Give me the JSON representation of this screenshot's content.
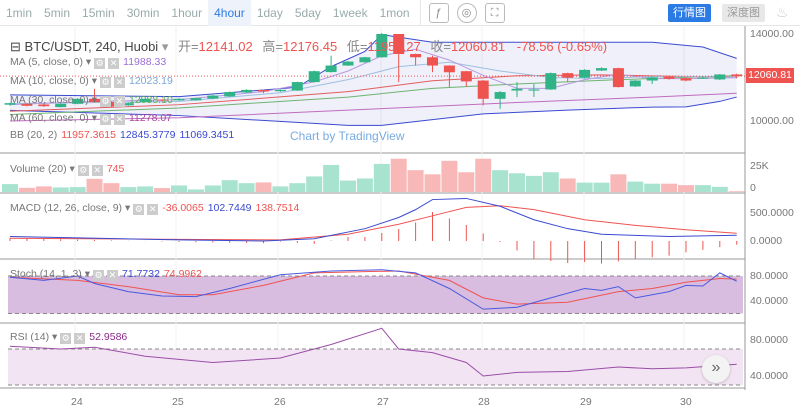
{
  "toolbar": {
    "timeframes": [
      "1min",
      "5min",
      "15min",
      "30min",
      "1hour",
      "4hour",
      "1day",
      "5day",
      "1week",
      "1mon"
    ],
    "active": "4hour",
    "icons": [
      "indicator-icon",
      "settings-icon",
      "fullscreen-icon"
    ],
    "view_buttons": [
      "行情图",
      "深度图"
    ],
    "active_view": "行情图",
    "accent": "#2c7be5"
  },
  "header": {
    "symbol": "BTC/USDT, 240, Huobi",
    "open_label": "开=",
    "open": "12141.02",
    "high_label": "高=",
    "high": "12176.45",
    "low_label": "低=",
    "low": "11958.27",
    "close_label": "收=",
    "close": "12060.81",
    "change": "-78.56 (-0.65%)"
  },
  "legends": {
    "ma5": {
      "label": "MA (5, close, 0)",
      "value": "11988.33",
      "color": "#9c6fd6"
    },
    "ma10": {
      "label": "MA (10, close, 0)",
      "value": "12023.19",
      "color": "#7ba7d8"
    },
    "ma30": {
      "label": "MA (30, close, 0)",
      "value": "12088.10",
      "color": "#5fae5f"
    },
    "ma60": {
      "label": "MA (60, close, 0)",
      "value": "11278.07",
      "color": "#a9459e"
    },
    "bb": {
      "label": "BB (20, 2)",
      "values": [
        "11957.3615",
        "12845.3779",
        "11069.3451"
      ]
    },
    "volume": {
      "label": "Volume (20)",
      "value": "745"
    },
    "macd": {
      "label": "MACD (12, 26, close, 9)",
      "values": [
        "-36.0065",
        "102.7449",
        "138.7514"
      ]
    },
    "stoch": {
      "label": "Stoch (14, 1, 3)",
      "values": [
        "71.7732",
        "74.9962"
      ]
    },
    "rsi": {
      "label": "RSI (14)",
      "value": "52.9586"
    }
  },
  "watermark": "Chart by TradingView",
  "price_axis": {
    "labels": [
      "14000.00",
      "10000.00"
    ],
    "current": "12060.81"
  },
  "volume_axis": [
    "25K",
    "0"
  ],
  "macd_axis": [
    "500.0000",
    "0.0000"
  ],
  "stoch_axis": [
    "80.0000",
    "40.0000"
  ],
  "rsi_axis": [
    "80.0000",
    "40.0000"
  ],
  "x_axis": [
    "24",
    "25",
    "26",
    "27",
    "28",
    "29",
    "30"
  ],
  "colors": {
    "up": "#2fb387",
    "down": "#ef5350",
    "vol_up": "#a8e3cf",
    "vol_down": "#f9b8b8"
  },
  "chart_data": {
    "type": "candlestick",
    "candles": [
      [
        10750,
        10850,
        10700,
        10820
      ],
      [
        10790,
        10830,
        10670,
        10700
      ],
      [
        10760,
        10800,
        10650,
        10680
      ],
      [
        10640,
        10820,
        10620,
        10790
      ],
      [
        10790,
        11050,
        10770,
        11020
      ],
      [
        11020,
        11480,
        10850,
        10870
      ],
      [
        10870,
        10900,
        10640,
        10670
      ],
      [
        10720,
        10850,
        10700,
        10820
      ],
      [
        10870,
        11050,
        10850,
        11020
      ],
      [
        10980,
        11000,
        10900,
        10940
      ],
      [
        10950,
        11050,
        10930,
        11020
      ],
      [
        10950,
        11070,
        10930,
        11050
      ],
      [
        11030,
        11200,
        11000,
        11170
      ],
      [
        11130,
        11360,
        11110,
        11330
      ],
      [
        11310,
        11460,
        11290,
        11430
      ],
      [
        11430,
        11450,
        11280,
        11360
      ],
      [
        11370,
        11450,
        11340,
        11430
      ],
      [
        11400,
        11810,
        11380,
        11790
      ],
      [
        11790,
        12320,
        11770,
        12290
      ],
      [
        12250,
        13000,
        12230,
        12550
      ],
      [
        12550,
        12760,
        12530,
        12730
      ],
      [
        12700,
        12950,
        12690,
        12930
      ],
      [
        12930,
        14050,
        12910,
        14000
      ],
      [
        14000,
        14000,
        11790,
        13080
      ],
      [
        13080,
        13100,
        12550,
        12930
      ],
      [
        12930,
        13000,
        12250,
        12550
      ],
      [
        12550,
        12560,
        11560,
        12240
      ],
      [
        12290,
        12300,
        11590,
        11820
      ],
      [
        11860,
        11880,
        10720,
        11020
      ],
      [
        11020,
        11380,
        10560,
        11330
      ],
      [
        11400,
        11790,
        11100,
        11480
      ],
      [
        11400,
        11700,
        11100,
        11450
      ],
      [
        11450,
        12230,
        11430,
        12200
      ],
      [
        12200,
        12220,
        11790,
        11990
      ],
      [
        11990,
        12380,
        11960,
        12350
      ],
      [
        12320,
        12470,
        12300,
        12430
      ],
      [
        12430,
        12450,
        11540,
        11560
      ],
      [
        11590,
        11880,
        11570,
        11860
      ],
      [
        11860,
        12030,
        11700,
        12010
      ],
      [
        12050,
        12080,
        11900,
        11940
      ],
      [
        11970,
        12000,
        11830,
        11860
      ],
      [
        11960,
        12060,
        11940,
        11990
      ],
      [
        11910,
        12160,
        11890,
        12140
      ],
      [
        12141.02,
        12176.45,
        11958.27,
        12060.81
      ]
    ],
    "volume_k": [
      7.6,
      4,
      5.4,
      4.4,
      4.7,
      12.7,
      8.5,
      4.7,
      5.4,
      3.8,
      6.3,
      2.5,
      6.3,
      11.4,
      8.5,
      9.2,
      5.4,
      8.5,
      15,
      26,
      11,
      13,
      27,
      32,
      21,
      17,
      30,
      19,
      32,
      21,
      18,
      15.5,
      19,
      13,
      9,
      9,
      17,
      10,
      8,
      8,
      6.6,
      6.6,
      5,
      0.745
    ],
    "bb_upper": [
      [
        0,
        11200
      ],
      [
        10,
        11120
      ],
      [
        17,
        11550
      ],
      [
        19,
        12500
      ],
      [
        21,
        13200
      ],
      [
        22,
        13970
      ],
      [
        25,
        13620
      ],
      [
        38,
        13620
      ],
      [
        41,
        13400
      ],
      [
        43,
        12880
      ]
    ],
    "bb_lower": [
      [
        0,
        10490
      ],
      [
        10,
        10250
      ],
      [
        20,
        9800
      ],
      [
        22,
        9800
      ],
      [
        28,
        10330
      ],
      [
        33,
        10500
      ],
      [
        38,
        10640
      ],
      [
        40,
        10650
      ],
      [
        42,
        10900
      ],
      [
        43,
        11100
      ]
    ],
    "ma5": [
      [
        0,
        10750
      ],
      [
        5,
        10900
      ],
      [
        10,
        10980
      ],
      [
        15,
        11350
      ],
      [
        18,
        11800
      ],
      [
        20,
        12300
      ],
      [
        22,
        13000
      ],
      [
        24,
        13300
      ],
      [
        26,
        12800
      ],
      [
        28,
        12100
      ],
      [
        30,
        11500
      ],
      [
        32,
        11500
      ],
      [
        34,
        11900
      ],
      [
        36,
        12150
      ],
      [
        38,
        11950
      ],
      [
        40,
        11950
      ],
      [
        43,
        11990
      ]
    ],
    "ma10": [
      [
        0,
        10800
      ],
      [
        10,
        10900
      ],
      [
        16,
        11300
      ],
      [
        20,
        11900
      ],
      [
        23,
        12500
      ],
      [
        26,
        12700
      ],
      [
        29,
        12300
      ],
      [
        32,
        12000
      ],
      [
        35,
        11950
      ],
      [
        38,
        12050
      ],
      [
        43,
        12020
      ]
    ],
    "ma30": [
      [
        0,
        10300
      ],
      [
        10,
        10600
      ],
      [
        20,
        11100
      ],
      [
        25,
        11500
      ],
      [
        30,
        11700
      ],
      [
        36,
        11900
      ],
      [
        43,
        12088
      ]
    ],
    "ma_red": [
      [
        0,
        10450
      ],
      [
        10,
        10750
      ],
      [
        20,
        11350
      ],
      [
        25,
        11850
      ],
      [
        30,
        12080
      ],
      [
        35,
        12120
      ],
      [
        43,
        12000
      ]
    ],
    "ma60": [
      [
        0,
        10000
      ],
      [
        10,
        10150
      ],
      [
        20,
        10500
      ],
      [
        30,
        10850
      ],
      [
        38,
        11100
      ],
      [
        43,
        11278
      ]
    ],
    "macd": [
      [
        0,
        80
      ],
      [
        10,
        20
      ],
      [
        15,
        0
      ],
      [
        18,
        40
      ],
      [
        21,
        220
      ],
      [
        23,
        420
      ],
      [
        24,
        560
      ],
      [
        25,
        740
      ],
      [
        27,
        760
      ],
      [
        29,
        620
      ],
      [
        31,
        380
      ],
      [
        33,
        220
      ],
      [
        35,
        120
      ],
      [
        37,
        100
      ],
      [
        39,
        80
      ],
      [
        43,
        102.7
      ]
    ],
    "macd_signal": [
      [
        0,
        50
      ],
      [
        10,
        30
      ],
      [
        16,
        20
      ],
      [
        20,
        120
      ],
      [
        23,
        300
      ],
      [
        25,
        450
      ],
      [
        27,
        600
      ],
      [
        29,
        630
      ],
      [
        31,
        560
      ],
      [
        34,
        380
      ],
      [
        37,
        280
      ],
      [
        40,
        200
      ],
      [
        43,
        138.8
      ]
    ],
    "stoch_k": [
      [
        0,
        78
      ],
      [
        2,
        73
      ],
      [
        4,
        80
      ],
      [
        5,
        68
      ],
      [
        7,
        55
      ],
      [
        9,
        48
      ],
      [
        11,
        47
      ],
      [
        13,
        60
      ],
      [
        16,
        82
      ],
      [
        19,
        88
      ],
      [
        22,
        90
      ],
      [
        24,
        85
      ],
      [
        26,
        60
      ],
      [
        28,
        27
      ],
      [
        30,
        30
      ],
      [
        32,
        45
      ],
      [
        34,
        60
      ],
      [
        35,
        57
      ],
      [
        36,
        63
      ],
      [
        37,
        45
      ],
      [
        39,
        55
      ],
      [
        40,
        65
      ],
      [
        41,
        64
      ],
      [
        42,
        85
      ],
      [
        43,
        71.8
      ]
    ],
    "stoch_d": [
      [
        0,
        78
      ],
      [
        4,
        73
      ],
      [
        7,
        63
      ],
      [
        10,
        50
      ],
      [
        12,
        50
      ],
      [
        15,
        65
      ],
      [
        18,
        85
      ],
      [
        21,
        87
      ],
      [
        23,
        88
      ],
      [
        26,
        73
      ],
      [
        28,
        45
      ],
      [
        30,
        35
      ],
      [
        33,
        38
      ],
      [
        36,
        55
      ],
      [
        38,
        60
      ],
      [
        40,
        70
      ],
      [
        42,
        76
      ],
      [
        43,
        75
      ]
    ],
    "rsi": [
      [
        0,
        73
      ],
      [
        3,
        70
      ],
      [
        5,
        72
      ],
      [
        8,
        62
      ],
      [
        12,
        55
      ],
      [
        16,
        60
      ],
      [
        19,
        75
      ],
      [
        22,
        93
      ],
      [
        23,
        70
      ],
      [
        25,
        66
      ],
      [
        27,
        55
      ],
      [
        28,
        40
      ],
      [
        30,
        44
      ],
      [
        33,
        45
      ],
      [
        36,
        50
      ],
      [
        38,
        48
      ],
      [
        40,
        49
      ],
      [
        43,
        53
      ]
    ],
    "stoch_bands": [
      80,
      20
    ],
    "rsi_bands": [
      70,
      30
    ],
    "price_range": [
      10000,
      14000
    ]
  }
}
